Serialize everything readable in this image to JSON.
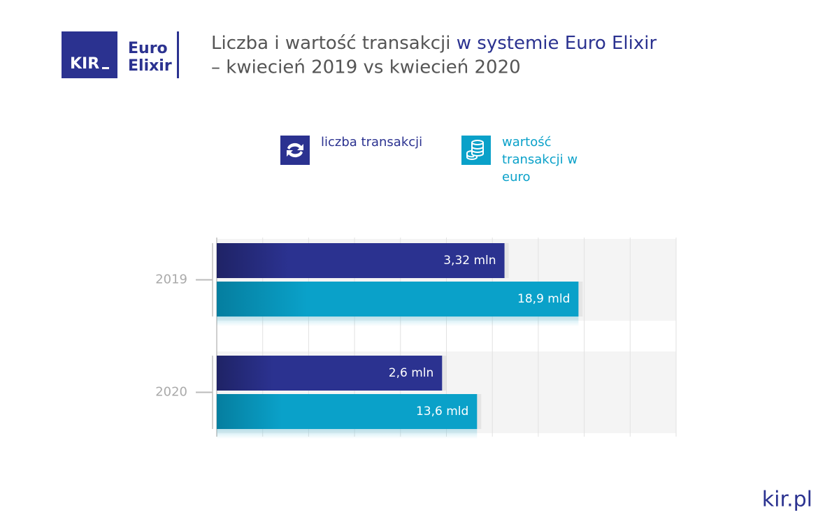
{
  "logo": {
    "mark": "KIR",
    "line1": "Euro",
    "line2": "Elixir"
  },
  "footer": "kir.pl",
  "chart_data": {
    "type": "bar",
    "orientation": "horizontal",
    "title": [
      "Liczba i wartość transakcji",
      "w systemie Euro Elixir"
    ],
    "subtitle": "– kwiecień 2019 vs kwiecień 2020",
    "categories": [
      "2019",
      "2020"
    ],
    "series": [
      {
        "name": "liczba transakcji",
        "color": "#2b3290",
        "xlim": [
          0,
          5.3
        ],
        "values": [
          3.32,
          2.6
        ],
        "value_labels": [
          "3,32 mln",
          "2,6 mln"
        ]
      },
      {
        "name": "wartość transakcji w euro",
        "color": "#0aa1c9",
        "xlim": [
          0,
          24
        ],
        "values": [
          18.9,
          13.6
        ],
        "value_labels": [
          "18,9 mld",
          "13,6 mld"
        ]
      }
    ]
  }
}
